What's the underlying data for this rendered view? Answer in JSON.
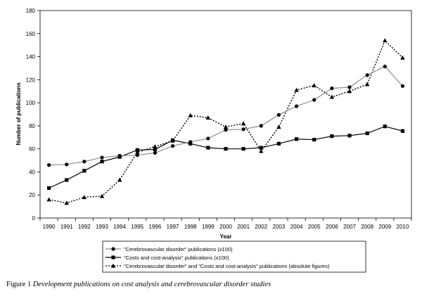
{
  "chart_data": {
    "type": "line",
    "xlabel": "Year",
    "ylabel": "Number of publications",
    "ylim": [
      0,
      180
    ],
    "yticks": [
      0,
      20,
      40,
      60,
      80,
      100,
      120,
      140,
      160,
      180
    ],
    "grid": false,
    "legend_position": "bottom",
    "x": [
      "1990",
      "1991",
      "1992",
      "1993",
      "1994",
      "1995",
      "1996",
      "1997",
      "1998",
      "1999",
      "2000",
      "2001",
      "2002",
      "2003",
      "2004",
      "2005",
      "2006",
      "2007",
      "2008",
      "2009",
      "2010"
    ],
    "series": [
      {
        "name": "\"Cerebrovascular disorder\" publications (x100)",
        "marker": "circle",
        "line_style": "solid",
        "line_color": "#8c8c8c",
        "values": [
          46,
          46.5,
          49,
          52.5,
          54,
          54.5,
          56.5,
          62.5,
          66,
          69,
          76.5,
          77,
          80,
          89.5,
          97,
          102.5,
          112.5,
          113.5,
          124,
          131.5,
          114.5
        ]
      },
      {
        "name": "\"Costs and cost-analysis\" publications (x100)",
        "marker": "square",
        "line_style": "solid",
        "line_color": "#000000",
        "values": [
          26,
          33,
          41,
          49,
          53,
          59,
          59.5,
          67.5,
          64.5,
          61,
          60,
          60,
          61,
          64.5,
          68.5,
          68,
          71,
          71.5,
          73.5,
          79.5,
          75.5
        ]
      },
      {
        "name": "\"Cerebrovascular disorder\" and \"Costs and cost-analysis\" publications (absolute figures)",
        "marker": "triangle",
        "line_style": "dotted",
        "line_color": "#000000",
        "values": [
          16,
          13,
          18,
          19,
          33,
          57,
          62,
          67,
          89,
          87,
          79,
          82,
          58,
          79,
          111,
          115,
          105,
          110,
          116,
          154,
          139
        ]
      }
    ]
  },
  "caption": {
    "prefix": "Figure 1",
    "text": "Development publications on cost analysis and cerebrovascular disorder studies"
  }
}
